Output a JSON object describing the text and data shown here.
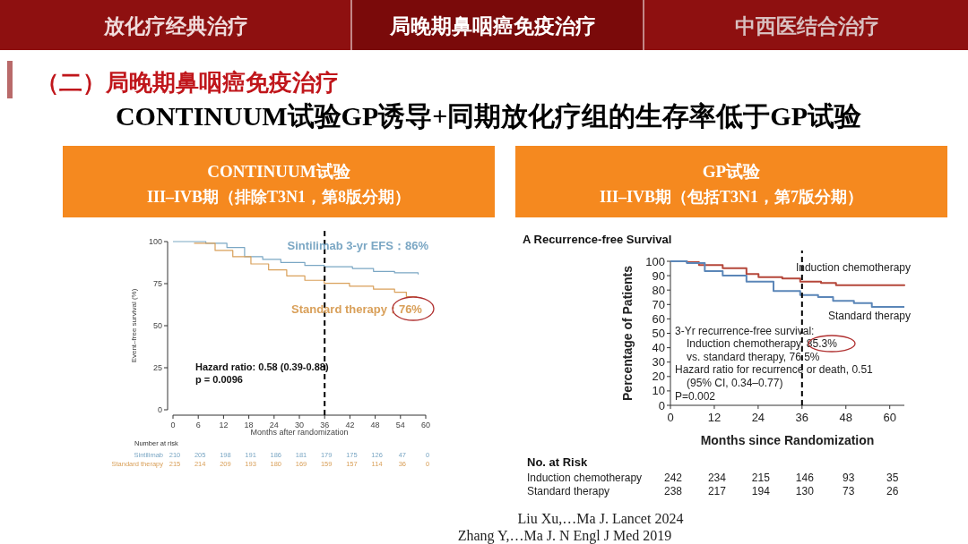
{
  "chart_data": [
    {
      "type": "other",
      "annotations": [
        "放化疗经典治疗",
        "局晚期鼻咽癌免疫治疗",
        "中西医结合治疗",
        "（二）局晚期鼻咽癌免疫治疗",
        "CONTINUUM试验GP诱导+同期放化疗组的生存率低于GP试验",
        "Liu Xu,…Ma J. Lancet 2024",
        "Zhang Y,…Ma J. N Engl J Med 2019"
      ]
    },
    {
      "type": "step",
      "title": "CONTINUUM试验",
      "subtitle": "III–IVB期（排除T3N1，第8版分期）",
      "xlabel": "Months after randomization",
      "ylabel": "Event–free survival (%)",
      "xlim": [
        0,
        60
      ],
      "xticks": [
        0,
        6,
        12,
        18,
        24,
        30,
        36,
        42,
        48,
        54,
        60
      ],
      "ylim": [
        0,
        100
      ],
      "yticks": [
        0,
        25,
        50,
        75,
        100
      ],
      "series": [
        {
          "color": "#7ba7c4",
          "x": [
            0,
            7.8,
            12.8,
            17,
            21.3,
            25.6,
            31.3,
            35.9,
            42.6,
            47.6,
            52.6,
            58.2
          ],
          "values": [
            100,
            99,
            96.5,
            91,
            89.4,
            87.6,
            85.8,
            85,
            84,
            82.3,
            81.4,
            80.5
          ]
        },
        {
          "color": "#d9a05a",
          "x": [
            5,
            10,
            14.2,
            18.5,
            22.7,
            27,
            31.3,
            35.9,
            41.9,
            47.6,
            52.6,
            55.4,
            57.9
          ],
          "values": [
            99,
            94.7,
            91,
            86.7,
            83.2,
            79.6,
            77,
            75.2,
            73.5,
            71.7,
            69.9,
            67.3,
            67.3
          ]
        }
      ],
      "ref_lines": [
        {
          "axis": "x",
          "value": 36,
          "color": "#000000",
          "line_style": "dashed"
        }
      ],
      "annotations": [
        "Sintilimab 3-yr EFS：86%",
        "Standard therapy：76%",
        "Hazard ratio: 0.58 (0.39-0.88)",
        "p = 0.0096",
        "Number at risk",
        "Sintilimab",
        "210",
        "205",
        "198",
        "191",
        "186",
        "181",
        "179",
        "175",
        "126",
        "47",
        "0",
        "Standard therapy",
        "215",
        "214",
        "209",
        "193",
        "180",
        "169",
        "159",
        "157",
        "114",
        "36",
        "0"
      ]
    },
    {
      "type": "step",
      "title": "GP试验",
      "subtitle": "III–IVB期（包括T3N1，第7版分期）",
      "xlabel": "Months since Randomization",
      "ylabel": "Percentage of Patients",
      "xlim": [
        0,
        64
      ],
      "xticks": [
        0,
        12,
        24,
        36,
        48,
        60
      ],
      "ylim": [
        0,
        100
      ],
      "yticks": [
        0,
        10,
        20,
        30,
        40,
        50,
        60,
        70,
        80,
        90,
        100
      ],
      "series": [
        {
          "name": "Induction chemotherapy",
          "color": "#b5473a",
          "x": [
            0,
            4.5,
            7.8,
            14.3,
            20.8,
            24.1,
            30.6,
            35.5,
            41.2,
            45.3,
            55.1,
            64
          ],
          "values": [
            100,
            99.4,
            97.3,
            95.2,
            91.1,
            89,
            88,
            85.9,
            84.9,
            83.4,
            83.4,
            83.8
          ]
        },
        {
          "name": "Standard therapy",
          "color": "#5b86b8",
          "x": [
            0,
            4.5,
            9.4,
            14.3,
            20.8,
            28.2,
            32.2,
            35.5,
            40.4,
            44.5,
            50.2,
            55.1,
            64
          ],
          "values": [
            100,
            98.8,
            93.2,
            90,
            85.9,
            79.3,
            79.3,
            76.6,
            75.2,
            72.5,
            71,
            68.3,
            68.3
          ]
        }
      ],
      "ref_lines": [
        {
          "axis": "x",
          "value": 36,
          "color": "#000000",
          "line_style": "dashed"
        }
      ],
      "annotations": [
        "A  Recurrence-free Survival",
        "3-Yr recurrence-free survival:",
        "Induction chemotherapy, 85.3%",
        "vs. standard therapy, 76.5%",
        "Hazard ratio for recurrence or death, 0.51",
        "(95% CI, 0.34–0.77)",
        "P=0.002",
        "No. at Risk",
        "Induction chemotherapy",
        "242",
        "234",
        "215",
        "146",
        "93",
        "35",
        "Standard therapy",
        "238",
        "217",
        "194",
        "130",
        "73",
        "26"
      ]
    }
  ]
}
